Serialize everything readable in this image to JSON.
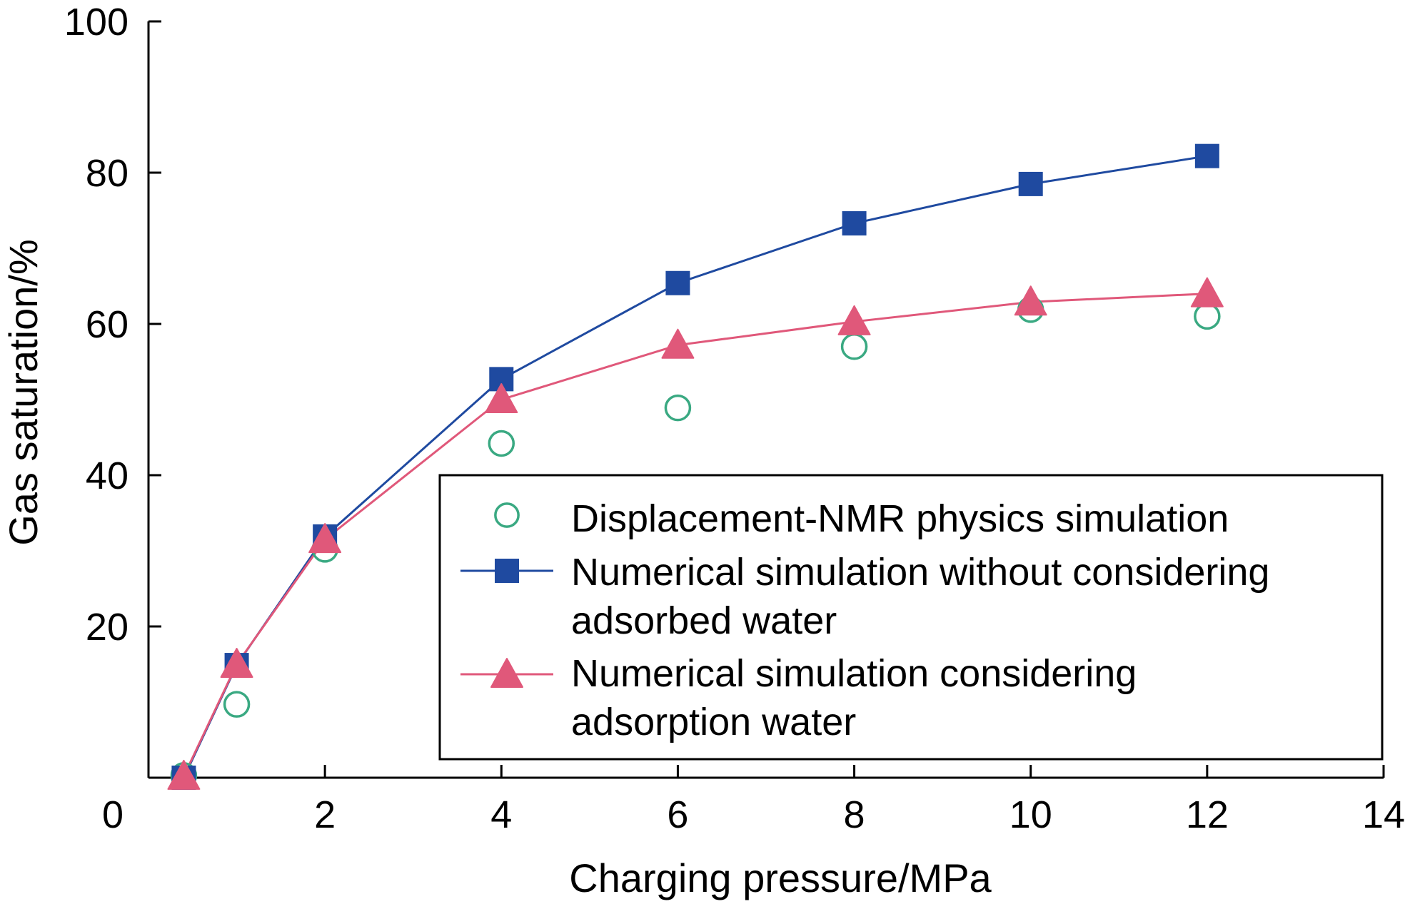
{
  "chart_data": {
    "type": "line",
    "xlabel": "Charging pressure/MPa",
    "ylabel": "Gas saturation/%",
    "xlim": [
      0,
      14
    ],
    "ylim": [
      0,
      100
    ],
    "x_ticks": [
      0,
      2,
      4,
      6,
      8,
      10,
      12,
      14
    ],
    "y_ticks": [
      20,
      40,
      60,
      80,
      100
    ],
    "y_tick_labels": [
      "20",
      "40",
      "60",
      "80",
      "100"
    ],
    "grid": false,
    "legend_position": "lower-right",
    "series": [
      {
        "name": "Displacement-NMR physics simulation",
        "marker": "open-circle",
        "line": false,
        "color": "#3aa982",
        "x": [
          0.4,
          1.0,
          2.0,
          4.0,
          6.0,
          8.0,
          10.0,
          12.0
        ],
        "y": [
          0.3,
          9.7,
          30.2,
          44.2,
          48.9,
          57.0,
          61.9,
          61.0
        ]
      },
      {
        "name": "Numerical simulation without considering adsorbed water",
        "name_lines": [
          "Numerical simulation without considering",
          "adsorbed water"
        ],
        "marker": "filled-square",
        "line": true,
        "color": "#1f4aa0",
        "x": [
          0.4,
          1.0,
          2.0,
          4.0,
          6.0,
          8.0,
          10.0,
          12.0
        ],
        "y": [
          0.0,
          14.9,
          31.9,
          52.7,
          65.4,
          73.3,
          78.5,
          82.2
        ]
      },
      {
        "name": "Numerical simulation considering adsorption water",
        "name_lines": [
          "Numerical simulation considering",
          "adsorption water"
        ],
        "marker": "filled-triangle",
        "line": true,
        "color": "#e0587a",
        "x": [
          0.4,
          1.0,
          2.0,
          4.0,
          6.0,
          8.0,
          10.0,
          12.0
        ],
        "y": [
          0.2,
          15.0,
          31.5,
          50.0,
          57.2,
          60.3,
          62.9,
          64.0
        ]
      }
    ]
  }
}
